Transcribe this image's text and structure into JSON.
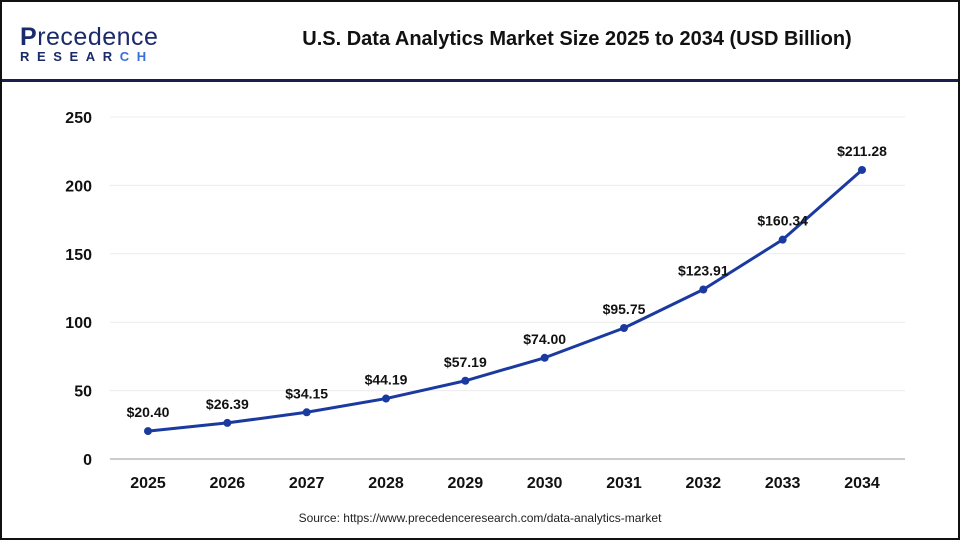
{
  "header": {
    "logo_text": "Precedence",
    "logo_subtext": "RESEARCH",
    "title": "U.S. Data Analytics Market Size 2025 to 2034 (USD Billion)"
  },
  "source": "Source: https://www.precedenceresearch.com/data-analytics-market",
  "chart_data": {
    "type": "line",
    "title": "U.S. Data Analytics Market Size 2025 to 2034 (USD Billion)",
    "categories": [
      "2025",
      "2026",
      "2027",
      "2028",
      "2029",
      "2030",
      "2031",
      "2032",
      "2033",
      "2034"
    ],
    "values": [
      20.4,
      26.39,
      34.15,
      44.19,
      57.19,
      74.0,
      95.75,
      123.91,
      160.34,
      211.28
    ],
    "data_labels": [
      "$20.40",
      "$26.39",
      "$34.15",
      "$44.19",
      "$57.19",
      "$74.00",
      "$95.75",
      "$123.91",
      "$160.34",
      "$211.28"
    ],
    "yticks": [
      "0",
      "50",
      "100",
      "150",
      "200",
      "250"
    ],
    "ylim": [
      0,
      250
    ],
    "grid": true,
    "legend": "none",
    "line_color": "#1a3aa0",
    "xlabel": "",
    "ylabel": ""
  }
}
